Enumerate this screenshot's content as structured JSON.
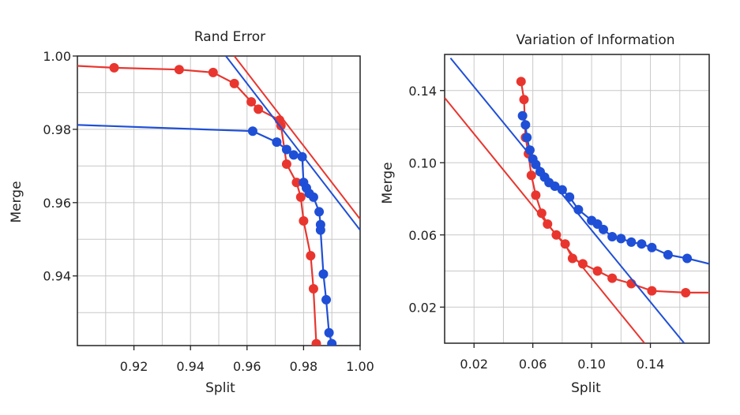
{
  "chart_data": [
    {
      "type": "line",
      "title": "Rand Error",
      "xlabel": "Split",
      "ylabel": "Merge",
      "xlim": [
        0.9,
        1.0
      ],
      "ylim": [
        0.921,
        1.0
      ],
      "xticks": [
        "0.92",
        "0.94",
        "0.96",
        "0.98",
        "1.00"
      ],
      "yticks": [
        "0.94",
        "0.96",
        "0.98",
        "1.00"
      ],
      "grid": true,
      "legend": "none",
      "series": [
        {
          "color": "#e8362f",
          "curve": [
            [
              0.9,
              0.9973
            ],
            [
              0.913,
              0.9968
            ],
            [
              0.936,
              0.9963
            ],
            [
              0.948,
              0.9955
            ],
            [
              0.9555,
              0.9925
            ],
            [
              0.9615,
              0.9875
            ],
            [
              0.964,
              0.9855
            ],
            [
              0.9715,
              0.9825
            ],
            [
              0.972,
              0.981
            ],
            [
              0.974,
              0.9705
            ],
            [
              0.9775,
              0.9655
            ],
            [
              0.979,
              0.9615
            ],
            [
              0.98,
              0.955
            ],
            [
              0.9825,
              0.9455
            ],
            [
              0.9835,
              0.9365
            ],
            [
              0.9845,
              0.9215
            ]
          ],
          "points": [
            [
              0.913,
              0.9968
            ],
            [
              0.936,
              0.9963
            ],
            [
              0.948,
              0.9955
            ],
            [
              0.9555,
              0.9925
            ],
            [
              0.9615,
              0.9875
            ],
            [
              0.964,
              0.9855
            ],
            [
              0.9715,
              0.9825
            ],
            [
              0.972,
              0.981
            ],
            [
              0.974,
              0.9705
            ],
            [
              0.9775,
              0.9655
            ],
            [
              0.979,
              0.9615
            ],
            [
              0.98,
              0.955
            ],
            [
              0.9825,
              0.9455
            ],
            [
              0.9835,
              0.9365
            ],
            [
              0.9845,
              0.9215
            ]
          ],
          "fit_line": [
            [
              0.9555,
              1.0
            ],
            [
              1.0,
              0.9555
            ]
          ]
        },
        {
          "color": "#1f4fd6",
          "curve": [
            [
              0.9,
              0.9812
            ],
            [
              0.962,
              0.9795
            ],
            [
              0.9705,
              0.9765
            ],
            [
              0.974,
              0.9745
            ],
            [
              0.9765,
              0.973
            ],
            [
              0.9795,
              0.9725
            ],
            [
              0.98,
              0.9655
            ],
            [
              0.981,
              0.964
            ],
            [
              0.982,
              0.9625
            ],
            [
              0.9835,
              0.9615
            ],
            [
              0.9855,
              0.9575
            ],
            [
              0.986,
              0.954
            ],
            [
              0.986,
              0.9525
            ],
            [
              0.987,
              0.9405
            ],
            [
              0.988,
              0.9335
            ],
            [
              0.989,
              0.9245
            ],
            [
              0.99,
              0.9215
            ]
          ],
          "points": [
            [
              0.962,
              0.9795
            ],
            [
              0.9705,
              0.9765
            ],
            [
              0.974,
              0.9745
            ],
            [
              0.9765,
              0.973
            ],
            [
              0.9795,
              0.9725
            ],
            [
              0.98,
              0.9655
            ],
            [
              0.981,
              0.964
            ],
            [
              0.982,
              0.9625
            ],
            [
              0.9835,
              0.9615
            ],
            [
              0.9855,
              0.9575
            ],
            [
              0.986,
              0.954
            ],
            [
              0.986,
              0.9525
            ],
            [
              0.987,
              0.9405
            ],
            [
              0.988,
              0.9335
            ],
            [
              0.989,
              0.9245
            ],
            [
              0.99,
              0.9215
            ]
          ],
          "fit_line": [
            [
              0.9525,
              1.0
            ],
            [
              1.0,
              0.9525
            ]
          ]
        }
      ]
    },
    {
      "type": "line",
      "title": "Variation of Information",
      "xlabel": "Split",
      "ylabel": "Merge",
      "xlim": [
        0.0,
        0.18
      ],
      "ylim": [
        0.0,
        0.16
      ],
      "xticks": [
        "0.02",
        "0.06",
        "0.10",
        "0.14"
      ],
      "yticks": [
        "0.02",
        "0.06",
        "0.10",
        "0.14"
      ],
      "grid": true,
      "legend": "none",
      "series": [
        {
          "color": "#e8362f",
          "curve": [
            [
              0.052,
              0.145
            ],
            [
              0.054,
              0.135
            ],
            [
              0.055,
              0.114
            ],
            [
              0.057,
              0.105
            ],
            [
              0.059,
              0.093
            ],
            [
              0.062,
              0.082
            ],
            [
              0.066,
              0.072
            ],
            [
              0.07,
              0.066
            ],
            [
              0.076,
              0.06
            ],
            [
              0.082,
              0.055
            ],
            [
              0.087,
              0.047
            ],
            [
              0.094,
              0.044
            ],
            [
              0.104,
              0.04
            ],
            [
              0.114,
              0.036
            ],
            [
              0.127,
              0.033
            ],
            [
              0.141,
              0.029
            ],
            [
              0.164,
              0.028
            ],
            [
              0.18,
              0.028
            ]
          ],
          "points": [
            [
              0.052,
              0.145
            ],
            [
              0.054,
              0.135
            ],
            [
              0.055,
              0.114
            ],
            [
              0.057,
              0.105
            ],
            [
              0.059,
              0.093
            ],
            [
              0.062,
              0.082
            ],
            [
              0.066,
              0.072
            ],
            [
              0.07,
              0.066
            ],
            [
              0.076,
              0.06
            ],
            [
              0.082,
              0.055
            ],
            [
              0.087,
              0.047
            ],
            [
              0.094,
              0.044
            ],
            [
              0.104,
              0.04
            ],
            [
              0.114,
              0.036
            ],
            [
              0.127,
              0.033
            ],
            [
              0.141,
              0.029
            ],
            [
              0.164,
              0.028
            ]
          ],
          "fit_line": [
            [
              0.0,
              0.136
            ],
            [
              0.136,
              0.0
            ]
          ]
        },
        {
          "color": "#1f4fd6",
          "curve": [
            [
              0.053,
              0.126
            ],
            [
              0.055,
              0.121
            ],
            [
              0.056,
              0.114
            ],
            [
              0.058,
              0.107
            ],
            [
              0.06,
              0.102
            ],
            [
              0.062,
              0.099
            ],
            [
              0.065,
              0.095
            ],
            [
              0.068,
              0.092
            ],
            [
              0.071,
              0.089
            ],
            [
              0.075,
              0.087
            ],
            [
              0.08,
              0.085
            ],
            [
              0.085,
              0.081
            ],
            [
              0.091,
              0.074
            ],
            [
              0.1,
              0.068
            ],
            [
              0.104,
              0.066
            ],
            [
              0.108,
              0.063
            ],
            [
              0.114,
              0.059
            ],
            [
              0.12,
              0.058
            ],
            [
              0.127,
              0.056
            ],
            [
              0.134,
              0.055
            ],
            [
              0.141,
              0.053
            ],
            [
              0.152,
              0.049
            ],
            [
              0.165,
              0.047
            ],
            [
              0.18,
              0.044
            ]
          ],
          "points": [
            [
              0.053,
              0.126
            ],
            [
              0.055,
              0.121
            ],
            [
              0.056,
              0.114
            ],
            [
              0.058,
              0.107
            ],
            [
              0.06,
              0.102
            ],
            [
              0.062,
              0.099
            ],
            [
              0.065,
              0.095
            ],
            [
              0.068,
              0.092
            ],
            [
              0.071,
              0.089
            ],
            [
              0.075,
              0.087
            ],
            [
              0.08,
              0.085
            ],
            [
              0.085,
              0.081
            ],
            [
              0.091,
              0.074
            ],
            [
              0.1,
              0.068
            ],
            [
              0.104,
              0.066
            ],
            [
              0.108,
              0.063
            ],
            [
              0.114,
              0.059
            ],
            [
              0.12,
              0.058
            ],
            [
              0.127,
              0.056
            ],
            [
              0.134,
              0.055
            ],
            [
              0.141,
              0.053
            ],
            [
              0.152,
              0.049
            ],
            [
              0.165,
              0.047
            ]
          ],
          "fit_line": [
            [
              0.004,
              0.158
            ],
            [
              0.163,
              0.0
            ]
          ]
        }
      ]
    }
  ]
}
